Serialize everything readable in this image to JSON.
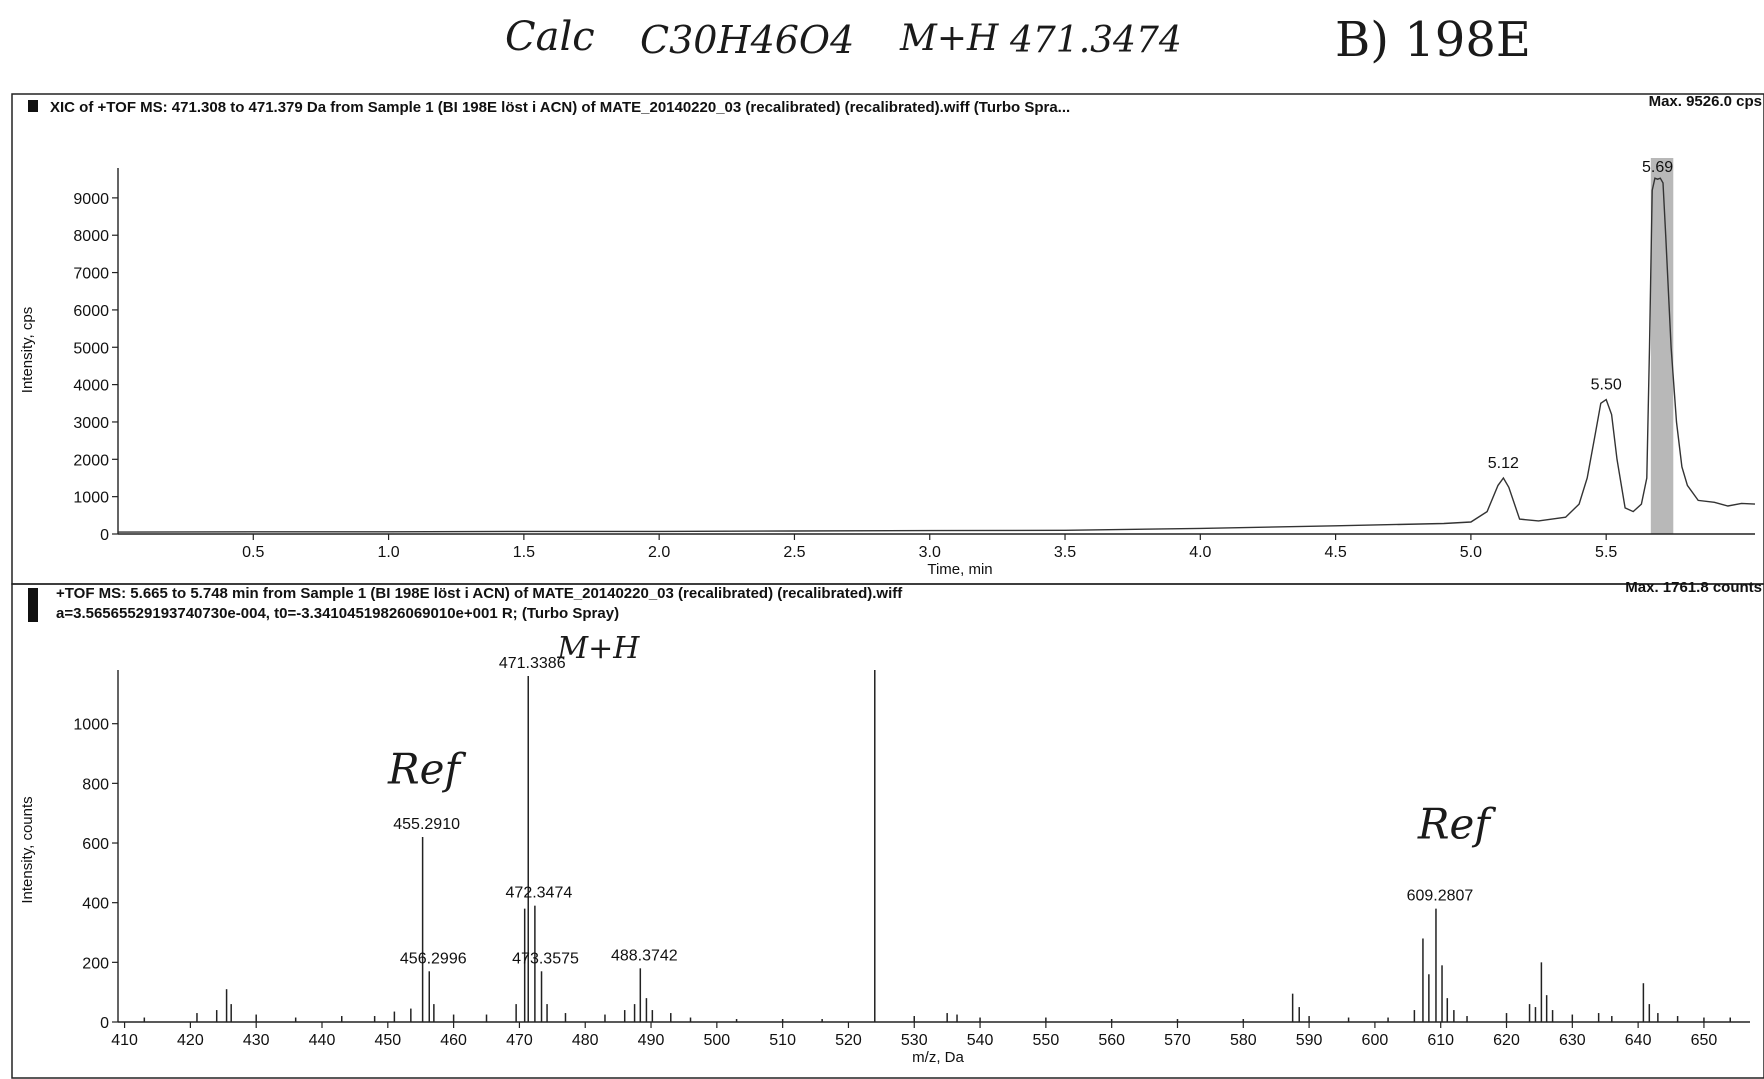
{
  "header": {
    "calc_label": "Calc",
    "formula": "C30H46O4",
    "ion_label": "M+H",
    "calc_mass": "471.3474",
    "sample_tag": "B) 198E"
  },
  "chart_data": [
    {
      "type": "line",
      "title": "XIC of +TOF MS: 471.308 to 471.379 Da from Sample 1 (BI 198E löst i ACN) of MATE_20140220_03 (recalibrated) (recalibrated).wiff (Turbo Spra...",
      "max_label": "Max. 9526.0 cps",
      "xlabel": "Time, min",
      "ylabel": "Intensity, cps",
      "xlim": [
        0,
        6.05
      ],
      "ylim": [
        0,
        9800
      ],
      "xticks": [
        0.5,
        1.0,
        1.5,
        2.0,
        2.5,
        3.0,
        3.5,
        4.0,
        4.5,
        5.0,
        5.5
      ],
      "xtick_labels": [
        "0.5",
        "1.0",
        "1.5",
        "2.0",
        "2.5",
        "3.0",
        "3.5",
        "4.0",
        "4.5",
        "5.0",
        "5.5"
      ],
      "yticks": [
        0,
        1000,
        2000,
        3000,
        4000,
        5000,
        6000,
        7000,
        8000,
        9000
      ],
      "ytick_labels": [
        "0",
        "1000",
        "2000",
        "3000",
        "4000",
        "5000",
        "6000",
        "7000",
        "8000",
        "9000"
      ],
      "series": [
        {
          "x": [
            0.0,
            0.5,
            1.0,
            1.5,
            2.0,
            2.5,
            3.0,
            3.5,
            4.0,
            4.5,
            4.9,
            5.0,
            5.06,
            5.1,
            5.12,
            5.14,
            5.18,
            5.25,
            5.35,
            5.4,
            5.43,
            5.46,
            5.48,
            5.5,
            5.52,
            5.54,
            5.57,
            5.6,
            5.63,
            5.65,
            5.66,
            5.67,
            5.68,
            5.69,
            5.7,
            5.71,
            5.72,
            5.74,
            5.76,
            5.78,
            5.8,
            5.84,
            5.9,
            5.95,
            6.0,
            6.05
          ],
          "y": [
            50,
            60,
            60,
            70,
            70,
            80,
            90,
            100,
            150,
            220,
            280,
            320,
            600,
            1300,
            1500,
            1250,
            400,
            350,
            450,
            800,
            1500,
            2700,
            3500,
            3600,
            3200,
            2000,
            700,
            600,
            800,
            1500,
            5000,
            9200,
            9526,
            9500,
            9526,
            9400,
            8000,
            5000,
            3000,
            1800,
            1300,
            900,
            850,
            750,
            820,
            800
          ]
        }
      ],
      "peak_labels": [
        {
          "x": 5.12,
          "y": 1500,
          "text": "5.12"
        },
        {
          "x": 5.5,
          "y": 3600,
          "text": "5.50"
        },
        {
          "x": 5.69,
          "y": 9526,
          "text": "5.69"
        }
      ],
      "highlight": {
        "x0": 5.665,
        "x1": 5.748
      }
    },
    {
      "type": "bar",
      "title": "+TOF MS: 5.665 to 5.748 min from Sample 1 (BI 198E löst i ACN) of MATE_20140220_03 (recalibrated) (recalibrated).wiff",
      "subtitle": "a=3.56565529193740730e-004, t0=-3.34104519826069010e+001 R; (Turbo Spray)",
      "max_label": "Max. 1761.8 counts",
      "xlabel": "m/z, Da",
      "ylabel": "Intensity, counts",
      "xlim": [
        409,
        657
      ],
      "ylim": [
        0,
        1180
      ],
      "xticks": [
        410,
        420,
        430,
        440,
        450,
        460,
        470,
        480,
        490,
        500,
        510,
        520,
        530,
        540,
        550,
        560,
        570,
        580,
        590,
        600,
        610,
        620,
        630,
        640,
        650
      ],
      "xtick_labels": [
        "410",
        "420",
        "430",
        "440",
        "450",
        "460",
        "470",
        "480",
        "490",
        "500",
        "510",
        "520",
        "530",
        "540",
        "550",
        "560",
        "570",
        "580",
        "590",
        "600",
        "610",
        "620",
        "630",
        "640",
        "650"
      ],
      "yticks": [
        0,
        200,
        400,
        600,
        800,
        1000
      ],
      "ytick_labels": [
        "0",
        "200",
        "400",
        "600",
        "800",
        "1000"
      ],
      "peaks": [
        {
          "x": 413,
          "y": 15
        },
        {
          "x": 421,
          "y": 30
        },
        {
          "x": 424,
          "y": 40
        },
        {
          "x": 425.5,
          "y": 110
        },
        {
          "x": 426.2,
          "y": 60
        },
        {
          "x": 430,
          "y": 25
        },
        {
          "x": 436,
          "y": 15
        },
        {
          "x": 443,
          "y": 20
        },
        {
          "x": 448,
          "y": 20
        },
        {
          "x": 451,
          "y": 35
        },
        {
          "x": 453.5,
          "y": 45
        },
        {
          "x": 455.29,
          "y": 620
        },
        {
          "x": 456.3,
          "y": 170
        },
        {
          "x": 457,
          "y": 60
        },
        {
          "x": 460,
          "y": 25
        },
        {
          "x": 465,
          "y": 25
        },
        {
          "x": 469.5,
          "y": 60
        },
        {
          "x": 470.8,
          "y": 380
        },
        {
          "x": 471.34,
          "y": 1160
        },
        {
          "x": 472.35,
          "y": 390
        },
        {
          "x": 473.36,
          "y": 170
        },
        {
          "x": 474.2,
          "y": 60
        },
        {
          "x": 477,
          "y": 30
        },
        {
          "x": 483,
          "y": 25
        },
        {
          "x": 486,
          "y": 40
        },
        {
          "x": 487.5,
          "y": 60
        },
        {
          "x": 488.37,
          "y": 180
        },
        {
          "x": 489.3,
          "y": 80
        },
        {
          "x": 490.2,
          "y": 40
        },
        {
          "x": 493,
          "y": 30
        },
        {
          "x": 496,
          "y": 15
        },
        {
          "x": 503,
          "y": 10
        },
        {
          "x": 510,
          "y": 10
        },
        {
          "x": 516,
          "y": 10
        },
        {
          "x": 524,
          "y": 1180
        },
        {
          "x": 530,
          "y": 20
        },
        {
          "x": 535,
          "y": 30
        },
        {
          "x": 536.5,
          "y": 25
        },
        {
          "x": 540,
          "y": 15
        },
        {
          "x": 550,
          "y": 15
        },
        {
          "x": 560,
          "y": 10
        },
        {
          "x": 570,
          "y": 10
        },
        {
          "x": 580,
          "y": 10
        },
        {
          "x": 587.5,
          "y": 95
        },
        {
          "x": 588.5,
          "y": 50
        },
        {
          "x": 590,
          "y": 20
        },
        {
          "x": 596,
          "y": 15
        },
        {
          "x": 602,
          "y": 15
        },
        {
          "x": 606,
          "y": 40
        },
        {
          "x": 607.3,
          "y": 280
        },
        {
          "x": 608.2,
          "y": 160
        },
        {
          "x": 609.28,
          "y": 380
        },
        {
          "x": 610.2,
          "y": 190
        },
        {
          "x": 611,
          "y": 80
        },
        {
          "x": 612,
          "y": 40
        },
        {
          "x": 614,
          "y": 20
        },
        {
          "x": 620,
          "y": 30
        },
        {
          "x": 623.5,
          "y": 60
        },
        {
          "x": 624.4,
          "y": 50
        },
        {
          "x": 625.3,
          "y": 200
        },
        {
          "x": 626.1,
          "y": 90
        },
        {
          "x": 627,
          "y": 40
        },
        {
          "x": 630,
          "y": 25
        },
        {
          "x": 634,
          "y": 30
        },
        {
          "x": 636,
          "y": 20
        },
        {
          "x": 640.8,
          "y": 130
        },
        {
          "x": 641.7,
          "y": 60
        },
        {
          "x": 643,
          "y": 30
        },
        {
          "x": 646,
          "y": 20
        },
        {
          "x": 650,
          "y": 15
        },
        {
          "x": 654,
          "y": 15
        }
      ],
      "peak_labels": [
        {
          "x": 455.29,
          "y": 620,
          "text": "455.2910"
        },
        {
          "x": 456.3,
          "y": 170,
          "text": "456.2996"
        },
        {
          "x": 471.34,
          "y": 1160,
          "text": "471.3386"
        },
        {
          "x": 472.35,
          "y": 390,
          "text": "472.3474"
        },
        {
          "x": 473.36,
          "y": 170,
          "text": "473.3575"
        },
        {
          "x": 488.37,
          "y": 180,
          "text": "488.3742"
        },
        {
          "x": 609.28,
          "y": 380,
          "text": "609.2807"
        }
      ],
      "annotations": [
        {
          "text": "M+H",
          "x": 482,
          "y": 1220
        },
        {
          "text": "Ref",
          "x": 455.5,
          "y": 800
        },
        {
          "text": "Ref",
          "x": 612,
          "y": 615
        }
      ]
    }
  ]
}
